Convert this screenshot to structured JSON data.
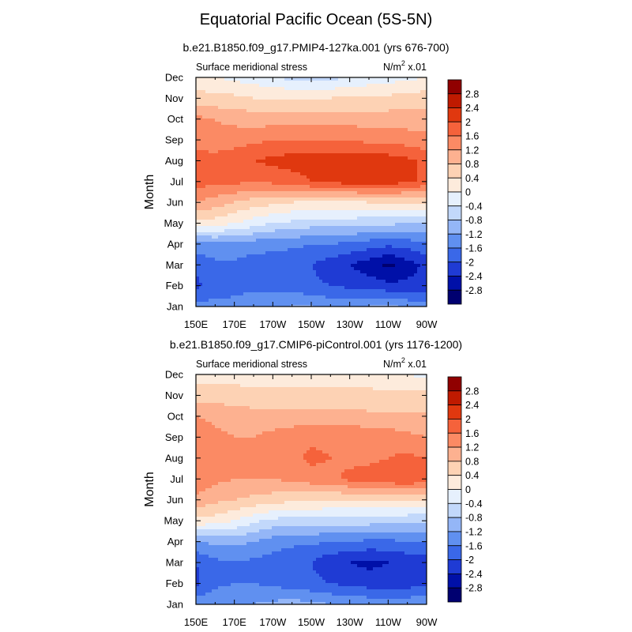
{
  "title": "Equatorial Pacific Ocean (5S-5N)",
  "colors": [
    "#000070",
    "#0010a8",
    "#1f3bd4",
    "#3a68e8",
    "#6090f0",
    "#94b6f7",
    "#c2d8fb",
    "#e6f0fd",
    "#fdebdc",
    "#fdd2b4",
    "#fdb190",
    "#fb8a64",
    "#f5623b",
    "#e0380f",
    "#bf1a00",
    "#900000"
  ],
  "chart_data": [
    {
      "type": "contour",
      "panel_title": "b.e21.B1850.f09_g17.PMIP4-127ka.001 (yrs 676-700)",
      "left_label": "Surface meridional stress",
      "units_label": "N/m",
      "units_sup": "2",
      "units_scale": "x.01",
      "ylabel": "Month",
      "x_ticks": [
        "150E",
        "170E",
        "170W",
        "150W",
        "130W",
        "110W",
        "90W"
      ],
      "y_ticks": [
        "Jan",
        "Feb",
        "Mar",
        "Apr",
        "May",
        "Jun",
        "Jul",
        "Aug",
        "Sep",
        "Oct",
        "Nov",
        "Dec"
      ],
      "levels": [
        -2.8,
        -2.4,
        -2,
        -1.6,
        -1.2,
        -0.8,
        -0.4,
        0,
        0.4,
        0.8,
        1.2,
        1.6,
        2,
        2.4,
        2.8
      ],
      "colorbar_labels": [
        "2.8",
        "2.4",
        "2",
        "1.6",
        "1.2",
        "0.8",
        "0.4",
        "0",
        "-0.4",
        "-0.8",
        "-1.2",
        "-1.6",
        "-2",
        "-2.4",
        "-2.8"
      ],
      "x_lon": [
        150,
        160,
        170,
        180,
        190,
        200,
        210,
        220,
        230,
        240,
        250,
        260,
        270
      ],
      "z": [
        [
          -1.4,
          -1.5,
          -1.5,
          -1.4,
          -1.3,
          -1.2,
          -1.2,
          -1.3,
          -1.3,
          -1.2,
          -1.1,
          -1.3,
          -1.4
        ],
        [
          -2.1,
          -1.8,
          -1.7,
          -1.7,
          -1.7,
          -1.8,
          -1.9,
          -2.0,
          -2.1,
          -2.2,
          -2.3,
          -2.3,
          -2.2
        ],
        [
          -1.9,
          -1.7,
          -1.7,
          -1.8,
          -1.8,
          -1.9,
          -2.0,
          -2.2,
          -2.4,
          -2.6,
          -2.9,
          -2.6,
          -2.3
        ],
        [
          -1.4,
          -1.3,
          -1.3,
          -1.4,
          -1.5,
          -1.5,
          -1.6,
          -1.6,
          -1.7,
          -1.8,
          -1.9,
          -1.8,
          -1.7
        ],
        [
          0.3,
          0.2,
          0.0,
          -0.2,
          -0.4,
          -0.5,
          -0.6,
          -0.6,
          -0.6,
          -0.7,
          -0.7,
          -0.8,
          -0.8
        ],
        [
          1.2,
          1.0,
          0.8,
          0.6,
          0.5,
          0.4,
          0.3,
          0.3,
          0.3,
          0.4,
          0.4,
          0.4,
          0.4
        ],
        [
          1.8,
          1.7,
          1.7,
          1.6,
          1.7,
          1.8,
          2.0,
          2.1,
          2.2,
          2.2,
          2.2,
          2.1,
          1.9
        ],
        [
          1.8,
          1.8,
          1.9,
          2.0,
          2.1,
          2.2,
          2.2,
          2.2,
          2.2,
          2.2,
          2.2,
          2.1,
          1.9
        ],
        [
          1.4,
          1.3,
          1.4,
          1.5,
          1.6,
          1.6,
          1.6,
          1.6,
          1.6,
          1.5,
          1.5,
          1.4,
          1.3
        ],
        [
          1.3,
          1.2,
          1.1,
          1.0,
          1.0,
          1.0,
          1.0,
          1.0,
          1.0,
          1.0,
          1.0,
          1.0,
          1.0
        ],
        [
          0.6,
          0.5,
          0.5,
          0.4,
          0.4,
          0.4,
          0.4,
          0.4,
          0.5,
          0.5,
          0.5,
          0.6,
          0.6
        ],
        [
          0.1,
          0.0,
          -0.1,
          -0.2,
          -0.4,
          -0.5,
          -0.5,
          -0.5,
          -0.4,
          -0.3,
          -0.2,
          -0.1,
          0.0
        ]
      ]
    },
    {
      "type": "contour",
      "panel_title": "b.e21.B1850.f09_g17.CMIP6-piControl.001 (yrs 1176-1200)",
      "left_label": "Surface meridional stress",
      "units_label": "N/m",
      "units_sup": "2",
      "units_scale": "x.01",
      "ylabel": "Month",
      "x_ticks": [
        "150E",
        "170E",
        "170W",
        "150W",
        "130W",
        "110W",
        "90W"
      ],
      "y_ticks": [
        "Jan",
        "Feb",
        "Mar",
        "Apr",
        "May",
        "Jun",
        "Jul",
        "Aug",
        "Sep",
        "Oct",
        "Nov",
        "Dec"
      ],
      "levels": [
        -2.8,
        -2.4,
        -2,
        -1.6,
        -1.2,
        -0.8,
        -0.4,
        0,
        0.4,
        0.8,
        1.2,
        1.6,
        2,
        2.4,
        2.8
      ],
      "colorbar_labels": [
        "2.8",
        "2.4",
        "2",
        "1.6",
        "1.2",
        "0.8",
        "0.4",
        "0",
        "-0.4",
        "-0.8",
        "-1.2",
        "-1.6",
        "-2",
        "-2.4",
        "-2.8"
      ],
      "x_lon": [
        150,
        160,
        170,
        180,
        190,
        200,
        210,
        220,
        230,
        240,
        250,
        260,
        270
      ],
      "z": [
        [
          -1.3,
          -1.3,
          -1.3,
          -1.2,
          -1.1,
          -1.0,
          -1.1,
          -1.2,
          -1.3,
          -1.3,
          -1.3,
          -1.3,
          -1.3
        ],
        [
          -2.1,
          -1.7,
          -1.6,
          -1.6,
          -1.7,
          -1.8,
          -1.9,
          -2.0,
          -2.1,
          -2.2,
          -2.2,
          -2.2,
          -2.1
        ],
        [
          -2.0,
          -1.7,
          -1.6,
          -1.7,
          -1.8,
          -1.9,
          -2.0,
          -2.3,
          -2.4,
          -2.5,
          -2.4,
          -2.3,
          -2.2
        ],
        [
          -1.2,
          -1.1,
          -1.1,
          -1.2,
          -1.4,
          -1.5,
          -1.5,
          -1.6,
          -1.6,
          -1.7,
          -1.7,
          -1.6,
          -1.6
        ],
        [
          0.3,
          0.2,
          0.0,
          -0.3,
          -0.5,
          -0.6,
          -0.6,
          -0.6,
          -0.6,
          -0.6,
          -0.6,
          -0.7,
          -0.7
        ],
        [
          1.1,
          0.9,
          0.8,
          0.7,
          0.6,
          0.5,
          0.5,
          0.4,
          0.4,
          0.4,
          0.4,
          0.4,
          0.4
        ],
        [
          1.5,
          1.3,
          1.2,
          1.2,
          1.2,
          1.3,
          1.4,
          1.5,
          1.7,
          1.8,
          1.9,
          2.0,
          1.8
        ],
        [
          1.6,
          1.3,
          1.2,
          1.2,
          1.3,
          1.5,
          1.7,
          1.6,
          1.5,
          1.5,
          1.6,
          1.7,
          1.6
        ],
        [
          1.5,
          1.3,
          1.2,
          1.2,
          1.3,
          1.4,
          1.5,
          1.5,
          1.5,
          1.4,
          1.4,
          1.3,
          1.2
        ],
        [
          1.2,
          1.1,
          1.0,
          1.0,
          1.0,
          1.0,
          1.0,
          1.0,
          1.0,
          0.9,
          0.9,
          0.9,
          0.9
        ],
        [
          0.6,
          0.6,
          0.6,
          0.5,
          0.5,
          0.5,
          0.5,
          0.5,
          0.5,
          0.5,
          0.5,
          0.5,
          0.5
        ],
        [
          0.2,
          0.2,
          0.2,
          0.2,
          0.2,
          0.2,
          0.2,
          0.2,
          0.2,
          0.2,
          0.1,
          0.0,
          -0.1
        ]
      ]
    }
  ]
}
